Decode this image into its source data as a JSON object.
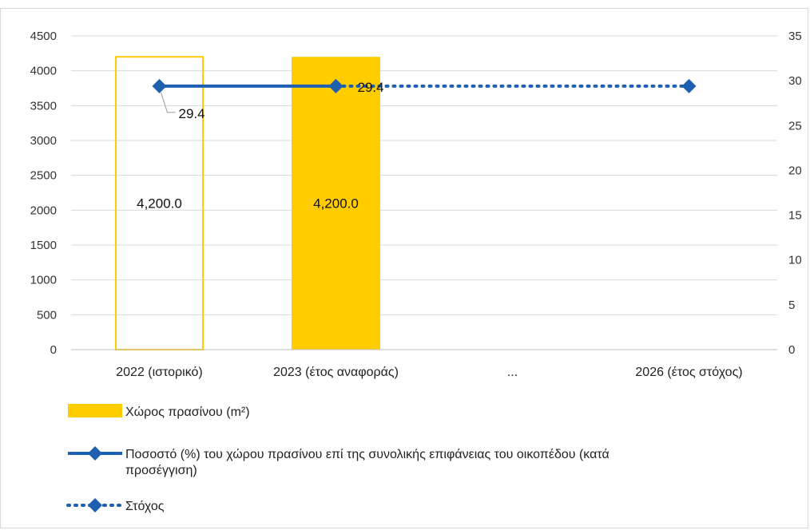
{
  "chart_data": {
    "type": "bar",
    "categories": [
      "2022 (ιστορικό)",
      "2023 (έτος αναφοράς)",
      "...",
      "2026 (έτος στόχος)"
    ],
    "y_left": {
      "ticks": [
        "0",
        "500",
        "1000",
        "1500",
        "2000",
        "2500",
        "3000",
        "3500",
        "4000",
        "4500"
      ],
      "ylim": [
        0,
        4500
      ]
    },
    "y_right": {
      "ticks": [
        "0",
        "5",
        "10",
        "15",
        "20",
        "25",
        "30",
        "35"
      ],
      "ylim": [
        0,
        35
      ]
    },
    "series": [
      {
        "name": "Χώρος πρασίνου (m²)",
        "type": "bar",
        "axis": "left",
        "values": [
          4200,
          4200,
          null,
          null
        ],
        "labels": [
          "4,200.0",
          "4,200.0",
          "",
          ""
        ],
        "styles": [
          "outline",
          "filled",
          "",
          ""
        ],
        "color": "#FFCC00"
      },
      {
        "name": "Ποσοστό (%) του χώρου πρασίνου επί της συνολικής επιφάνειας του οικοπέδου (κατά προσέγγιση)",
        "type": "line",
        "axis": "right",
        "values": [
          29.4,
          29.4,
          null,
          null
        ],
        "labels": [
          "29.4",
          "29.4",
          "",
          ""
        ],
        "color": "#1F5FAF"
      },
      {
        "name": "Στόχος",
        "type": "line-dotted",
        "axis": "right",
        "values": [
          null,
          29.4,
          null,
          29.4
        ],
        "color": "#1F5FAF"
      }
    ],
    "legend_position": "bottom",
    "grid": true
  }
}
